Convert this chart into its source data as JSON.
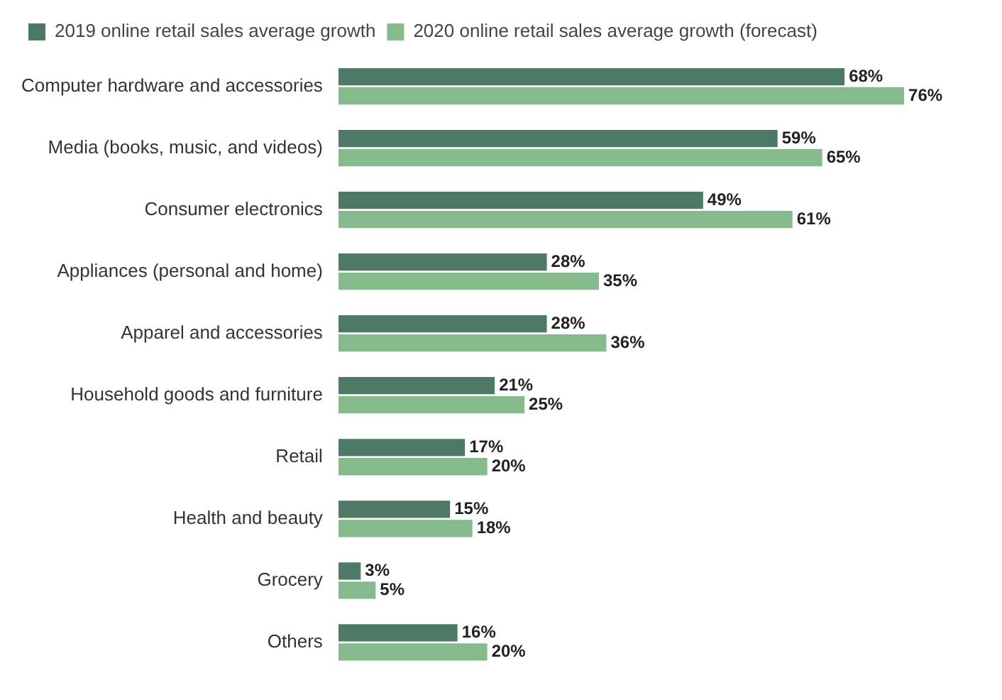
{
  "chart_data": {
    "type": "bar",
    "orientation": "horizontal",
    "legend": "top left",
    "grid": false,
    "tick_labels": "y",
    "categories": [
      "Computer hardware and accessories",
      "Media (books, music, and videos)",
      "Consumer electronics",
      "Appliances (personal and home)",
      "Apparel and accessories",
      "Household goods and furniture",
      "Retail",
      "Health and beauty",
      "Grocery",
      "Others"
    ],
    "series": [
      {
        "name": "2019 online retail sales average growth",
        "color": "#4e7a65",
        "values": [
          68,
          59,
          49,
          28,
          28,
          21,
          17,
          15,
          3,
          16
        ],
        "value_labels": [
          "68%",
          "59%",
          "49%",
          "28%",
          "28%",
          "21%",
          "17%",
          "15%",
          "3%",
          "16%"
        ]
      },
      {
        "name": "2020 online retail sales average growth (forecast)",
        "color": "#84ba8c",
        "values": [
          76,
          65,
          61,
          35,
          36,
          25,
          20,
          18,
          5,
          20
        ],
        "value_labels": [
          "76%",
          "65%",
          "61%",
          "35%",
          "36%",
          "25%",
          "20%",
          "18%",
          "5%",
          "20%"
        ]
      }
    ]
  }
}
